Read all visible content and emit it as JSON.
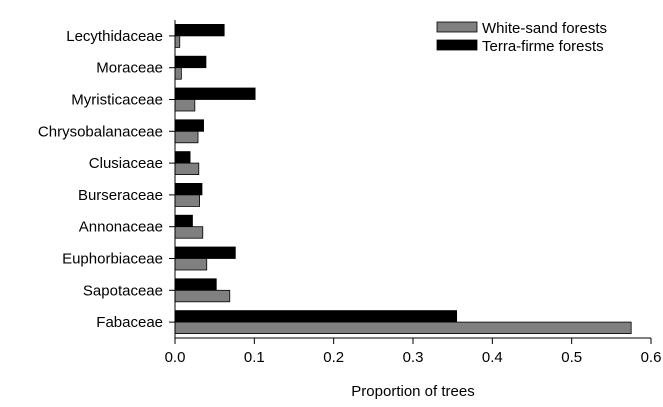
{
  "chart_data": {
    "type": "bar",
    "orientation": "horizontal",
    "title": "",
    "xlabel": "Proportion of trees",
    "ylabel": "",
    "xlim": [
      0,
      0.6
    ],
    "xticks": [
      "0.0",
      "0.1",
      "0.2",
      "0.3",
      "0.4",
      "0.5",
      "0.6"
    ],
    "categories": [
      "Lecythidaceae",
      "Moraceae",
      "Myristicaceae",
      "Chrysobalanaceae",
      "Clusiaceae",
      "Burseraceae",
      "Annonaceae",
      "Euphorbiaceae",
      "Sapotaceae",
      "Fabaceae"
    ],
    "series": [
      {
        "name": "White-sand forests",
        "color": "#808080",
        "values": [
          0.006,
          0.008,
          0.025,
          0.029,
          0.03,
          0.031,
          0.035,
          0.04,
          0.069,
          0.575
        ]
      },
      {
        "name": "Terra-firme forests",
        "color": "#000000",
        "values": [
          0.062,
          0.039,
          0.101,
          0.036,
          0.019,
          0.034,
          0.022,
          0.076,
          0.052,
          0.355
        ]
      }
    ],
    "legend": {
      "position": "top-right"
    },
    "grid": false
  }
}
